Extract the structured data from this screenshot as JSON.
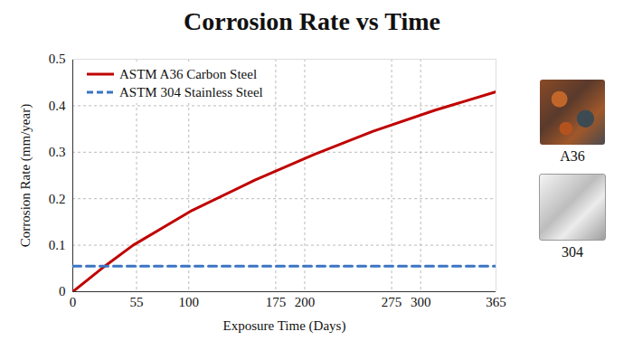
{
  "chart_data": {
    "type": "line",
    "title": "Corrosion Rate vs Time",
    "x_label": "Exposure Time (Days)",
    "y_label": "Corrosion Rate (mm/year)",
    "x": [
      0,
      25,
      52,
      103,
      157,
      208,
      259,
      312,
      365
    ],
    "series": [
      {
        "name": "ASTM A36 Carbon Steel",
        "color": "#c00000",
        "line_style": "solid",
        "values": [
          0,
          0.05,
          0.1,
          0.175,
          0.24,
          0.295,
          0.345,
          0.39,
          0.43
        ]
      },
      {
        "name": "ASTM 304 Stainless Steel",
        "color": "#3a75c4",
        "line_style": "dashed",
        "values": [
          0.055,
          0.055,
          0.055,
          0.055,
          0.055,
          0.055,
          0.055,
          0.055,
          0.055
        ]
      }
    ],
    "xlim": [
      0,
      365
    ],
    "xticks": [
      0,
      55,
      100,
      175,
      200,
      275,
      300,
      365
    ],
    "ylim": [
      0,
      0.5
    ],
    "yticks": [
      0,
      0.1,
      0.2,
      0.3,
      0.4,
      0.5
    ],
    "grid": true,
    "legend": "top-left",
    "samples": [
      "A36",
      "304"
    ]
  }
}
